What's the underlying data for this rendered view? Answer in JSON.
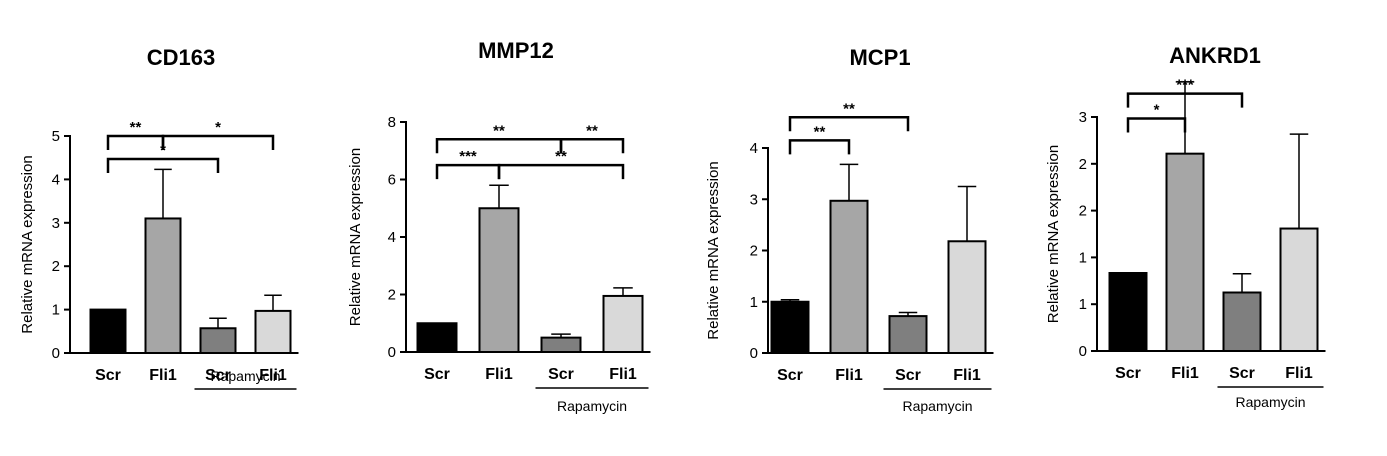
{
  "chart_data": [
    {
      "type": "bar",
      "title": "CD163",
      "ylabel": "Relative mRNA expression",
      "ylim": [
        0,
        5
      ],
      "yticks": [
        "0",
        "1",
        "2",
        "3",
        "4",
        "5"
      ],
      "categories": [
        "Scr",
        "Fli1",
        "Scr",
        "Fli1"
      ],
      "values": [
        1.0,
        3.1,
        0.57,
        0.97
      ],
      "errors": [
        0,
        1.13,
        0.23,
        0.36
      ],
      "colors": [
        "#000000",
        "#a6a6a6",
        "#7f7f7f",
        "#d9d9d9"
      ],
      "group_label": "Rapamycin",
      "significance": [
        {
          "from": 0,
          "to": 1,
          "label": "**",
          "y": 5.0
        },
        {
          "from": 1,
          "to": 3,
          "label": "*",
          "y": 5.0
        },
        {
          "from": 0,
          "to": 2,
          "label": "*",
          "y": 4.47
        }
      ]
    },
    {
      "type": "bar",
      "title": "MMP12",
      "ylabel": "Relative mRNA expression",
      "ylim": [
        0,
        8
      ],
      "yticks": [
        "0",
        "2",
        "4",
        "6",
        "8"
      ],
      "categories": [
        "Scr",
        "Fli1",
        "Scr",
        "Fli1"
      ],
      "values": [
        1.0,
        5.0,
        0.5,
        1.95
      ],
      "errors": [
        0,
        0.8,
        0.12,
        0.28
      ],
      "colors": [
        "#000000",
        "#a6a6a6",
        "#7f7f7f",
        "#d9d9d9"
      ],
      "group_label": "Rapamycin",
      "significance": [
        {
          "from": 0,
          "to": 2,
          "label": "**",
          "y": 7.4
        },
        {
          "from": 2,
          "to": 3,
          "label": "**",
          "y": 7.4
        },
        {
          "from": 0,
          "to": 1,
          "label": "***",
          "y": 6.5
        },
        {
          "from": 1,
          "to": 3,
          "label": "**",
          "y": 6.5
        }
      ]
    },
    {
      "type": "bar",
      "title": "MCP1",
      "ylabel": "Relative mRNA expression",
      "ylim": [
        0,
        4
      ],
      "yticks": [
        "0",
        "1",
        "2",
        "3",
        "4"
      ],
      "categories": [
        "Scr",
        "Fli1",
        "Scr",
        "Fli1"
      ],
      "values": [
        1.0,
        2.97,
        0.72,
        2.18
      ],
      "errors": [
        0.04,
        0.71,
        0.07,
        1.07
      ],
      "colors": [
        "#000000",
        "#a6a6a6",
        "#7f7f7f",
        "#d9d9d9"
      ],
      "group_label": "Rapamycin",
      "significance": [
        {
          "from": 0,
          "to": 2,
          "label": "**",
          "y": 4.6
        },
        {
          "from": 0,
          "to": 1,
          "label": "**",
          "y": 4.15
        }
      ]
    },
    {
      "type": "bar",
      "title": "ANKRD1",
      "ylabel": "Relative mRNA expression",
      "ylim": [
        0,
        3
      ],
      "yticks": [
        "0",
        "1",
        "1",
        "2",
        "2",
        "3"
      ],
      "categories": [
        "Scr",
        "Fli1",
        "Scr",
        "Fli1"
      ],
      "values": [
        1.0,
        2.53,
        0.75,
        1.57
      ],
      "errors": [
        0,
        0.92,
        0.24,
        1.21
      ],
      "colors": [
        "#000000",
        "#a6a6a6",
        "#7f7f7f",
        "#d9d9d9"
      ],
      "group_label": "Rapamycin",
      "significance": [
        {
          "from": 0,
          "to": 2,
          "label": "***",
          "y": 3.3
        },
        {
          "from": 0,
          "to": 1,
          "label": "*",
          "y": 2.98
        }
      ]
    }
  ]
}
